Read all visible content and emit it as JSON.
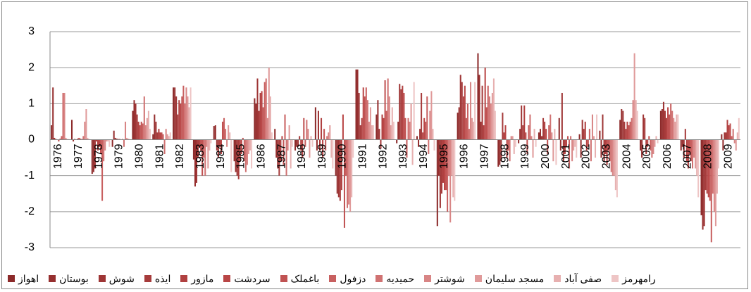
{
  "chart_data": {
    "type": "bar",
    "categories": [
      "1976",
      "1977",
      "1978",
      "1979",
      "1980",
      "1981",
      "1982",
      "1983",
      "1984",
      "1985",
      "1986",
      "1987",
      "1988",
      "1989",
      "1990",
      "1991",
      "1992",
      "1993",
      "1994",
      "1995",
      "1996",
      "1997",
      "1998",
      "1999",
      "2000",
      "2001",
      "2002",
      "2003",
      "2004",
      "2005",
      "2006",
      "2007",
      "2008",
      "2009"
    ],
    "ylim": [
      -3,
      3
    ],
    "yticks": [
      -3,
      -2,
      -1,
      0,
      1,
      2,
      3
    ],
    "grid": true,
    "legend": "bottom",
    "series": [
      {
        "name": "اهواز",
        "color": "#8c2a2a",
        "values": [
          0.4,
          0.55,
          -0.95,
          -0.2,
          0.8,
          0.15,
          1.45,
          -0.55,
          0.38,
          -0.6,
          1.15,
          0.3,
          -0.3,
          0.9,
          -1.0,
          1.95,
          0.7,
          -0.1,
          0.1,
          -2.4,
          0.75,
          2.4,
          -0.75,
          -0.1,
          0.2,
          0.6,
          0.15,
          0.25,
          0.55,
          -0.3,
          0.8,
          -0.3,
          -2.1,
          0.15
        ]
      },
      {
        "name": "بوستان",
        "color": "#962f2f",
        "values": [
          1.45,
          -0.05,
          -0.9,
          0.25,
          1.1,
          0.7,
          1.45,
          -1.3,
          0.4,
          -0.9,
          1.0,
          -0.5,
          -0.2,
          -0.3,
          -1.5,
          1.95,
          1.1,
          0.5,
          -0.2,
          -1.0,
          0.9,
          1.8,
          -0.7,
          0.3,
          0.3,
          -0.3,
          -0.5,
          -0.5,
          0.85,
          -0.5,
          0.85,
          -0.2,
          -2.5,
          -0.3
        ]
      },
      {
        "name": "شوش",
        "color": "#9e3535",
        "values": [
          0.05,
          0.02,
          -0.8,
          0.05,
          1.0,
          0.5,
          1.2,
          -1.2,
          -0.3,
          -1.0,
          1.7,
          -0.8,
          -0.2,
          0.8,
          -1.6,
          1.3,
          0.3,
          1.55,
          0.3,
          -1.9,
          1.8,
          0.5,
          -0.6,
          0.95,
          0.1,
          1.3,
          0.55,
          0.7,
          0.8,
          0.7,
          1.05,
          -0.5,
          -2.4,
          0.2
        ]
      },
      {
        "name": "ایذه",
        "color": "#a63b3b",
        "values": [
          0.02,
          0.01,
          -0.05,
          0.03,
          0.7,
          0.2,
          0.7,
          -0.5,
          -0.5,
          -1.1,
          0.8,
          -1.0,
          0.1,
          -0.3,
          -1.7,
          0.4,
          -0.25,
          1.4,
          1.3,
          -1.5,
          1.6,
          1.5,
          0.75,
          0.4,
          0.6,
          -0.6,
          0.3,
          -0.6,
          0.5,
          0.6,
          0.8,
          0.3,
          -1.4,
          0.2
        ]
      },
      {
        "name": "مازور",
        "color": "#b04040",
        "values": [
          0,
          0.03,
          -0.3,
          0.02,
          0.5,
          0.3,
          1.1,
          -0.2,
          -0.2,
          -0.6,
          1.3,
          -0.6,
          -0.3,
          0.6,
          -1.4,
          0.6,
          0.7,
          1.5,
          0.2,
          -1.2,
          1.2,
          0.4,
          0.2,
          0.95,
          0.5,
          -0.4,
          0.5,
          -0.4,
          0.3,
          -0.4,
          0.6,
          -0.6,
          -1.5,
          0.55
        ]
      },
      {
        "name": "سردشت",
        "color": "#b94646",
        "values": [
          -0.05,
          0.05,
          -0.2,
          0.02,
          0.4,
          0.2,
          1.0,
          -0.3,
          -0.4,
          -0.4,
          1.35,
          0.1,
          -0.5,
          -0.5,
          0.7,
          1.45,
          0.6,
          1.3,
          0.6,
          -1.4,
          1.5,
          2.0,
          0.4,
          0.2,
          0.3,
          -0.2,
          -0.3,
          -0.7,
          0.5,
          -0.2,
          0.9,
          -0.8,
          -1.6,
          0.4
        ]
      },
      {
        "name": "باغملک",
        "color": "#c05252",
        "values": [
          0.03,
          0.03,
          -0.4,
          0.01,
          0.5,
          0.2,
          1.2,
          -1.0,
          0.5,
          0.05,
          0.9,
          -0.7,
          0.6,
          0.3,
          -2.45,
          1.2,
          1.65,
          0.6,
          0.5,
          -1.4,
          0.6,
          0.9,
          -0.5,
          -0.4,
          -0.4,
          0.1,
          -0.2,
          -0.3,
          0.4,
          0.1,
          0.7,
          -0.4,
          -1.7,
          0.45
        ]
      },
      {
        "name": "دزفول",
        "color": "#c86060",
        "values": [
          0.1,
          0.02,
          -1.7,
          0.02,
          0.45,
          0.15,
          1.5,
          -0.5,
          0.6,
          -0.6,
          1.6,
          0.7,
          -0.2,
          -0.3,
          -1.0,
          1.45,
          0.8,
          -0.5,
          1.2,
          -2.0,
          1.0,
          1.5,
          -0.3,
          0.4,
          0.4,
          -0.8,
          0.3,
          -0.6,
          0.5,
          -0.3,
          1.0,
          -0.6,
          -2.85,
          0.1
        ]
      },
      {
        "name": "حمیدیه",
        "color": "#d07272",
        "values": [
          1.3,
          0.1,
          -0.6,
          -0.2,
          1.2,
          -0.4,
          1.0,
          -1.0,
          0.3,
          -0.9,
          1.7,
          -1.0,
          0.55,
          0.1,
          -1.9,
          1.1,
          1.7,
          0.6,
          -0.4,
          -1.0,
          0.3,
          1.2,
          -0.6,
          0.7,
          0.7,
          0.1,
          -0.6,
          -0.9,
          0.6,
          -0.5,
          0.8,
          -0.8,
          -1.5,
          0.3
        ]
      },
      {
        "name": "شوشتر",
        "color": "#d88585",
        "values": [
          1.3,
          0.5,
          -0.3,
          0.5,
          0.4,
          0.3,
          1.45,
          -0.2,
          -0.2,
          -0.7,
          0.6,
          -0.3,
          0.3,
          0.2,
          -1.8,
          0.5,
          1.2,
          0.5,
          0.8,
          -2.3,
          1.6,
          1.0,
          0.1,
          0.1,
          0.2,
          -0.6,
          0.7,
          -1.0,
          1.1,
          -0.4,
          0.6,
          -0.5,
          -2.0,
          -0.1
        ]
      },
      {
        "name": "مسجد سلیمان",
        "color": "#e09a9a",
        "values": [
          0.05,
          0.85,
          -0.05,
          0.05,
          0.6,
          0.15,
          1.2,
          -0.8,
          0.4,
          -0.4,
          2.0,
          0.4,
          -0.5,
          0.4,
          -2.0,
          0.9,
          0.4,
          1.0,
          1.35,
          -1.0,
          0.6,
          1.3,
          0.1,
          -0.5,
          -0.6,
          -0.3,
          0.1,
          -1.0,
          2.4,
          -0.2,
          0.5,
          -0.8,
          -2.4,
          -0.3
        ]
      },
      {
        "name": "صفی آباد",
        "color": "#e7b0b0",
        "values": [
          0.02,
          0.05,
          -0.05,
          0.03,
          0.8,
          0.1,
          0.9,
          -0.3,
          0.2,
          -0.3,
          1.2,
          -0.8,
          0.1,
          -0.5,
          -1.6,
          0.4,
          0.9,
          -0.7,
          0.3,
          -1.6,
          0.5,
          1.7,
          -0.4,
          0.3,
          0.3,
          -0.2,
          -0.5,
          -1.4,
          1.1,
          0.1,
          0.7,
          -1.0,
          -1.5,
          0.2
        ]
      },
      {
        "name": "رامهرمز",
        "color": "#eec5c5",
        "values": [
          0.02,
          0.02,
          -0.2,
          0.02,
          0.3,
          0.2,
          1.45,
          -0.1,
          -0.9,
          -0.8,
          0.2,
          -0.2,
          -0.2,
          -0.8,
          -0.5,
          0.4,
          0.5,
          1.6,
          -0.3,
          -1.7,
          1.6,
          0.8,
          -0.2,
          -0.2,
          -0.7,
          -0.5,
          0.7,
          -1.6,
          0.8,
          -0.1,
          0.7,
          -1.6,
          -0.8,
          0.6
        ]
      }
    ]
  }
}
